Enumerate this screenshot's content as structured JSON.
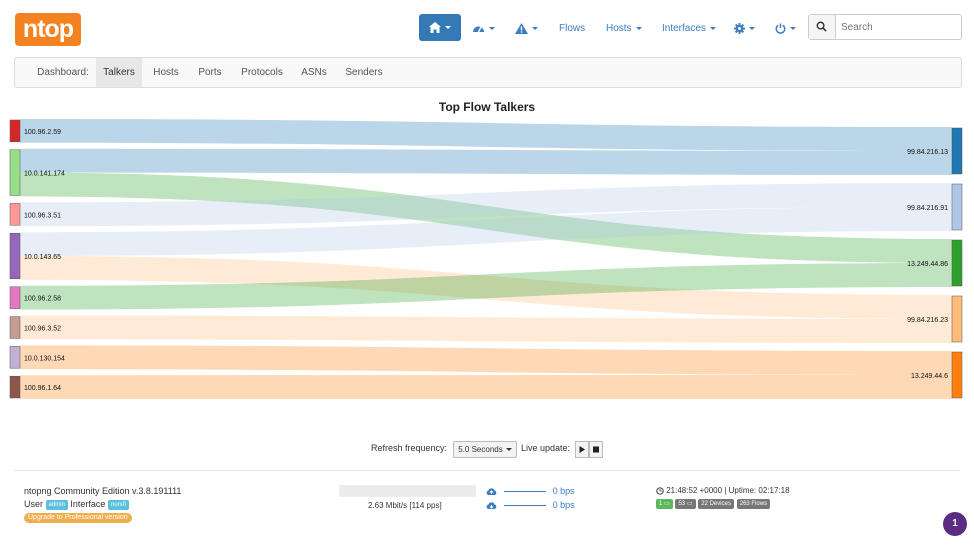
{
  "header": {
    "logo": "ntop",
    "nav": [
      {
        "label": "Flows"
      },
      {
        "label": "Hosts"
      },
      {
        "label": "Interfaces"
      }
    ],
    "search_placeholder": "Search"
  },
  "subnav": {
    "items": [
      "Dashboard:",
      "Talkers",
      "Hosts",
      "Ports",
      "Protocols",
      "ASNs",
      "Senders"
    ],
    "active": "Talkers"
  },
  "chart_data": {
    "type": "sankey",
    "title": "Top Flow Talkers",
    "sources": [
      {
        "name": "100.96.2.59",
        "color": "#d62728",
        "weight": 1
      },
      {
        "name": "10.0.141.174",
        "color": "#98df8a",
        "weight": 2
      },
      {
        "name": "100.96.3.51",
        "color": "#ff9896",
        "weight": 1
      },
      {
        "name": "10.0.143.65",
        "color": "#9467bd",
        "weight": 2
      },
      {
        "name": "100.96.2.58",
        "color": "#e377c2",
        "weight": 1
      },
      {
        "name": "100.96.3.52",
        "color": "#c49c94",
        "weight": 1
      },
      {
        "name": "10.0.130.154",
        "color": "#c5b0d5",
        "weight": 1
      },
      {
        "name": "100.96.1.64",
        "color": "#8c564b",
        "weight": 1
      }
    ],
    "targets": [
      {
        "name": "99.84.216.13",
        "color": "#1f77b4",
        "weight": 2
      },
      {
        "name": "99.84.216.91",
        "color": "#aec7e8",
        "weight": 2
      },
      {
        "name": "13.249.44.86",
        "color": "#2ca02c",
        "weight": 2
      },
      {
        "name": "99.84.216.23",
        "color": "#ffbb78",
        "weight": 2
      },
      {
        "name": "13.249.44.6",
        "color": "#ff7f0e",
        "weight": 2
      }
    ],
    "links": [
      {
        "source": "100.96.2.59",
        "target": "99.84.216.13",
        "value": 1
      },
      {
        "source": "10.0.141.174",
        "target": "99.84.216.13",
        "value": 1
      },
      {
        "source": "10.0.141.174",
        "target": "13.249.44.86",
        "value": 1
      },
      {
        "source": "100.96.3.51",
        "target": "99.84.216.91",
        "value": 1
      },
      {
        "source": "10.0.143.65",
        "target": "99.84.216.91",
        "value": 1
      },
      {
        "source": "10.0.143.65",
        "target": "99.84.216.23",
        "value": 1
      },
      {
        "source": "100.96.2.58",
        "target": "13.249.44.86",
        "value": 1
      },
      {
        "source": "100.96.3.52",
        "target": "99.84.216.23",
        "value": 1
      },
      {
        "source": "10.0.130.154",
        "target": "13.249.44.6",
        "value": 1
      },
      {
        "source": "100.96.1.64",
        "target": "13.249.44.6",
        "value": 1
      }
    ]
  },
  "refresh": {
    "label": "Refresh frequency:",
    "value": "5.0 Seconds",
    "live_label": "Live update:"
  },
  "footer": {
    "version": "ntopng Community Edition v.3.8.191111",
    "user_label": "User",
    "user": "admin",
    "interface_label": "Interface",
    "interface": "nurs0",
    "upgrade": "Upgrade to Professional version",
    "throughput": "2.63 Mbit/s [114 pps]",
    "upload": "0 bps",
    "download": "0 bps",
    "clock": "21:48:52 +0000 | Uptime: 02:17:18",
    "badges": [
      "1",
      "53",
      "22 Devices",
      "263 Flows"
    ],
    "notifications": "1"
  }
}
